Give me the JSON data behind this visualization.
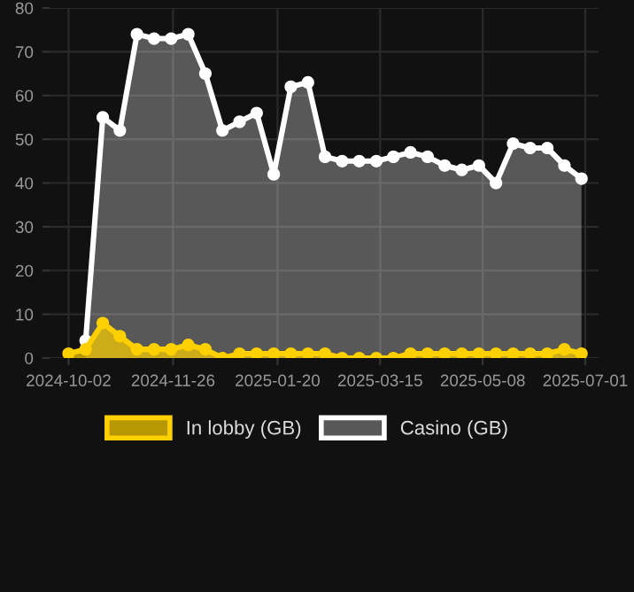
{
  "chart_data": {
    "type": "area",
    "x": [
      "2024-10-02",
      "2024-10-11",
      "2024-10-20",
      "2024-10-29",
      "2024-11-07",
      "2024-11-16",
      "2024-11-25",
      "2024-12-04",
      "2024-12-13",
      "2024-12-22",
      "2024-12-31",
      "2025-01-09",
      "2025-01-18",
      "2025-01-27",
      "2025-02-05",
      "2025-02-14",
      "2025-02-23",
      "2025-03-04",
      "2025-03-13",
      "2025-03-22",
      "2025-03-31",
      "2025-04-09",
      "2025-04-18",
      "2025-04-27",
      "2025-05-06",
      "2025-05-15",
      "2025-05-24",
      "2025-06-02",
      "2025-06-11",
      "2025-06-20",
      "2025-06-29"
    ],
    "series": [
      {
        "name": "Casino (GB)",
        "color": "#ffffff",
        "values": [
          null,
          4,
          55,
          52,
          74,
          73,
          73,
          74,
          65,
          52,
          54,
          56,
          42,
          62,
          63,
          46,
          45,
          45,
          45,
          46,
          47,
          46,
          44,
          43,
          44,
          40,
          49,
          48,
          48,
          44,
          41
        ]
      },
      {
        "name": "In lobby (GB)",
        "color": "#ffd000",
        "values": [
          1,
          2,
          8,
          5,
          2,
          2,
          2,
          3,
          2,
          0,
          1,
          1,
          1,
          1,
          1,
          1,
          0,
          0,
          0,
          0,
          1,
          1,
          1,
          1,
          1,
          1,
          1,
          1,
          1,
          2,
          1
        ]
      }
    ],
    "xlim": [
      "2024-09-22",
      "2025-07-08"
    ],
    "xticks": [
      {
        "value": "2024-10-02",
        "label": "2024-10-02"
      },
      {
        "value": "2024-11-26",
        "label": "2024-11-26"
      },
      {
        "value": "2025-01-20",
        "label": "2025-01-20"
      },
      {
        "value": "2025-03-15",
        "label": "2025-03-15"
      },
      {
        "value": "2025-05-08",
        "label": "2025-05-08"
      },
      {
        "value": "2025-07-01",
        "label": "2025-07-01"
      }
    ],
    "ylim": [
      0,
      80
    ],
    "yticks": [
      0,
      10,
      20,
      30,
      40,
      50,
      60,
      70,
      80
    ],
    "grid": true,
    "legend": "bottom",
    "marker": "circle",
    "line_style": "solid"
  }
}
